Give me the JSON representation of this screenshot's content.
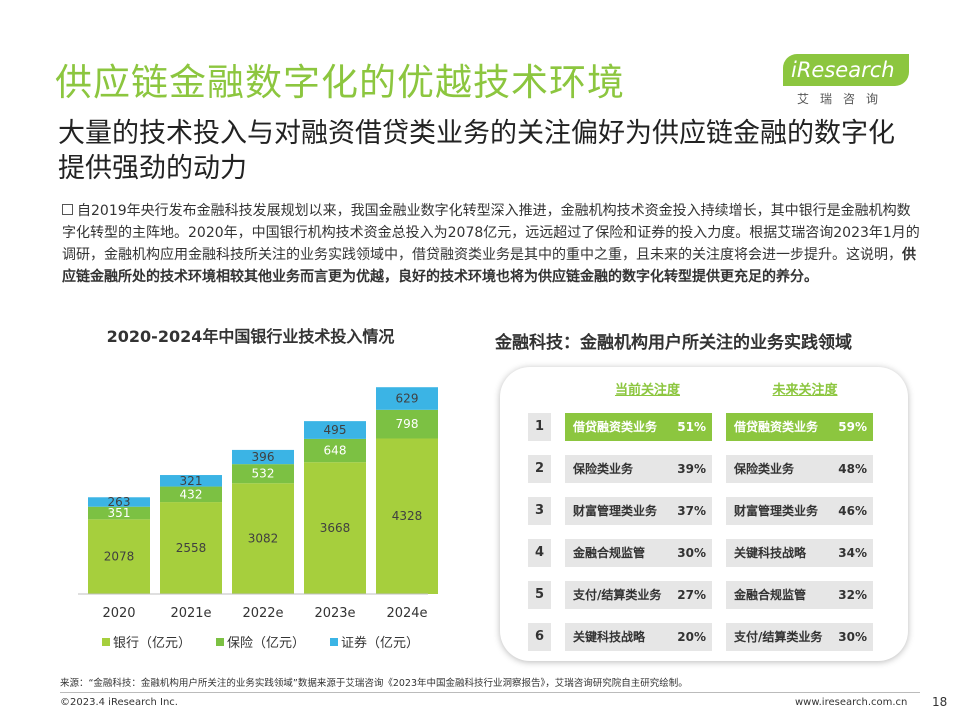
{
  "slide": {
    "title": "供应链金融数字化的优越技术环境",
    "subtitle": "大量的技术投入与对融资借贷类业务的关注偏好为供应链金融的数字化提供强劲的动力",
    "intro_plain": "自2019年央行发布金融科技发展规划以来，我国金融业数字化转型深入推进，金融机构技术资金投入持续增长，其中银行是金融机构数字化转型的主阵地。2020年，中国银行机构技术资金总投入为2078亿元，远远超过了保险和证券的投入力度。根据艾瑞咨询2023年1月的调研，金融机构应用金融科技所关注的业务实践领域中，借贷融资类业务是其中的重中之重，且未来的关注度将会进一步提升。这说明，",
    "intro_bold": "供应链金融所处的技术环境相较其他业务而言更为优越，良好的技术环境也将为供应链金融的数字化转型提供更充足的养分。"
  },
  "logo": {
    "text": "iResearch",
    "sub": "艾瑞咨询"
  },
  "chart_data": {
    "type": "bar",
    "stacked": true,
    "title": "2020-2024年中国银行业技术投入情况",
    "categories": [
      "2020",
      "2021e",
      "2022e",
      "2023e",
      "2024e"
    ],
    "series": [
      {
        "name": "银行（亿元）",
        "color": "#a6cf3d",
        "values": [
          2078,
          2558,
          3082,
          3668,
          4328
        ]
      },
      {
        "name": "保险（亿元）",
        "color": "#7cc143",
        "values": [
          351,
          432,
          532,
          648,
          798
        ]
      },
      {
        "name": "证券（亿元）",
        "color": "#3bb4e5",
        "values": [
          263,
          321,
          396,
          495,
          629
        ]
      }
    ],
    "ylim": [
      0,
      5900
    ],
    "legend_position": "bottom"
  },
  "fintech": {
    "title": "金融科技：金融机构用户所关注的业务实践领域",
    "current_header": "当前关注度",
    "future_header": "未来关注度",
    "rows": [
      {
        "rank": "1",
        "current_label": "借贷融资类业务",
        "current_pct": "51%",
        "future_label": "借贷融资类业务",
        "future_pct": "59%"
      },
      {
        "rank": "2",
        "current_label": "保险类业务",
        "current_pct": "39%",
        "future_label": "保险类业务",
        "future_pct": "48%"
      },
      {
        "rank": "3",
        "current_label": "财富管理类业务",
        "current_pct": "37%",
        "future_label": "财富管理类业务",
        "future_pct": "46%"
      },
      {
        "rank": "4",
        "current_label": "金融合规监管",
        "current_pct": "30%",
        "future_label": "关键科技战略",
        "future_pct": "34%"
      },
      {
        "rank": "5",
        "current_label": "支付/结算类业务",
        "current_pct": "27%",
        "future_label": "金融合规监管",
        "future_pct": "32%"
      },
      {
        "rank": "6",
        "current_label": "关键科技战略",
        "current_pct": "20%",
        "future_label": "支付/结算类业务",
        "future_pct": "30%"
      }
    ]
  },
  "footer": {
    "source": "来源：“金融科技：金融机构用户所关注的业务实践领域”数据来源于艾瑞咨询《2023年中国金融科技行业洞察报告》，艾瑞咨询研究院自主研究绘制。",
    "copyright": "©2023.4 iResearch Inc.",
    "website": "www.iresearch.com.cn",
    "page": "18"
  }
}
